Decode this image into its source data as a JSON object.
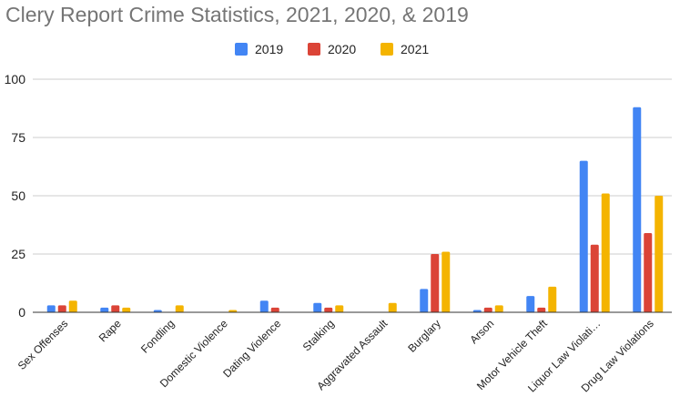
{
  "chart_data": {
    "type": "bar",
    "title": "Clery Report Crime Statistics, 2021, 2020, & 2019",
    "xlabel": "",
    "ylabel": "",
    "ylim": [
      0,
      100
    ],
    "yticks": [
      0,
      25,
      50,
      75,
      100
    ],
    "grid": true,
    "legend_position": "top-center",
    "categories": [
      "Sex Offenses",
      "Rape",
      "Fondling",
      "Domestic Violence",
      "Dating Violence",
      "Stalking",
      "Aggravated Assault",
      "Burglary",
      "Arson",
      "Motor Vehicle Theft",
      "Liquor Law Violati…",
      "Drug Law Violations"
    ],
    "series": [
      {
        "name": "2019",
        "color": "#4285F4",
        "values": [
          3,
          2,
          1,
          0,
          5,
          4,
          0,
          10,
          1,
          7,
          65,
          88
        ]
      },
      {
        "name": "2020",
        "color": "#DB4437",
        "values": [
          3,
          3,
          0,
          0,
          2,
          2,
          0,
          25,
          2,
          2,
          29,
          34
        ]
      },
      {
        "name": "2021",
        "color": "#F4B400",
        "values": [
          5,
          2,
          3,
          1,
          0,
          3,
          4,
          26,
          3,
          11,
          51,
          50
        ]
      }
    ]
  }
}
